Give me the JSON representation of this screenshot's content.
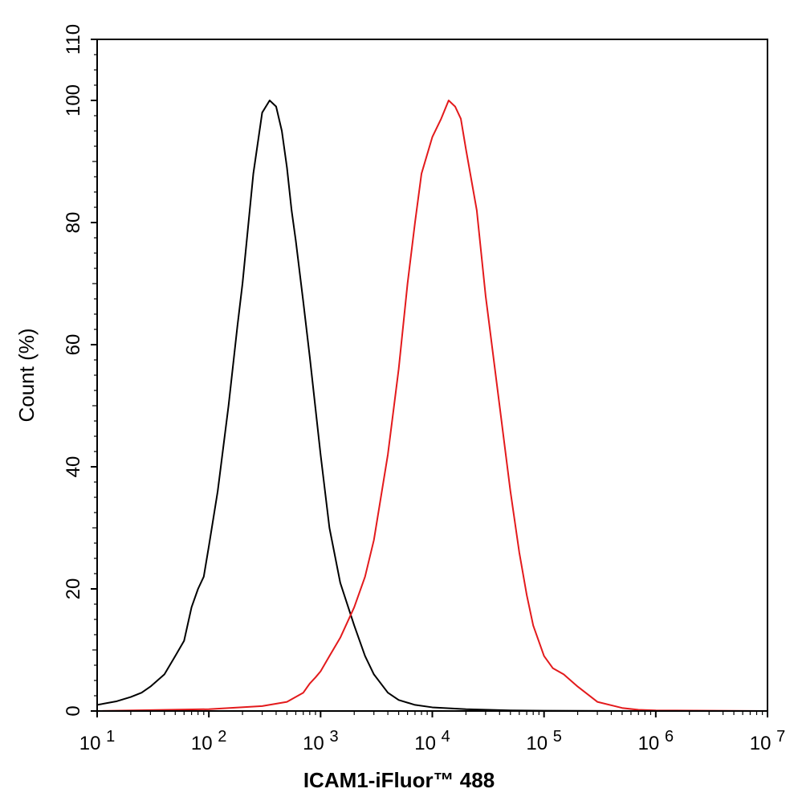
{
  "chart_data": {
    "type": "line",
    "title": "",
    "xlabel": "ICAM1-iFluor™ 488",
    "ylabel": "Count  (%)",
    "x_scale": "log",
    "xlim": [
      10,
      10000000
    ],
    "ylim": [
      0,
      110
    ],
    "x_ticks": [
      {
        "value": 10,
        "base": "10",
        "exp": "1"
      },
      {
        "value": 100,
        "base": "10",
        "exp": "2"
      },
      {
        "value": 1000,
        "base": "10",
        "exp": "3"
      },
      {
        "value": 10000,
        "base": "10",
        "exp": "4"
      },
      {
        "value": 100000,
        "base": "10",
        "exp": "5"
      },
      {
        "value": 1000000,
        "base": "10",
        "exp": "6"
      },
      {
        "value": 10000000,
        "base": "10",
        "exp": "7"
      }
    ],
    "y_ticks": [
      {
        "value": 0,
        "label": "0"
      },
      {
        "value": 20,
        "label": "20"
      },
      {
        "value": 40,
        "label": "40"
      },
      {
        "value": 60,
        "label": "60"
      },
      {
        "value": 80,
        "label": "80"
      },
      {
        "value": 100,
        "label": "100"
      },
      {
        "value": 110,
        "label": "110"
      }
    ],
    "grid": false,
    "legend": "none",
    "series": [
      {
        "color": "#000000",
        "x": [
          10,
          15,
          20,
          25,
          30,
          40,
          50,
          60,
          70,
          80,
          90,
          100,
          120,
          150,
          180,
          200,
          250,
          300,
          350,
          400,
          450,
          500,
          550,
          600,
          700,
          800,
          1000,
          1200,
          1500,
          2000,
          2500,
          3000,
          4000,
          5000,
          7000,
          10000,
          20000,
          50000,
          100000,
          1000000,
          10000000
        ],
        "y": [
          1,
          1.6,
          2.3,
          3,
          4,
          6,
          9,
          11.5,
          17,
          20,
          22,
          27,
          36,
          50,
          63,
          70,
          88,
          98,
          100,
          99,
          95,
          89,
          82,
          77,
          67,
          58,
          42,
          30,
          21,
          14,
          9,
          6,
          3,
          1.8,
          1,
          0.6,
          0.3,
          0.1,
          0.05,
          0,
          0
        ]
      },
      {
        "color": "#e31a1c",
        "x": [
          10,
          100,
          300,
          500,
          700,
          800,
          900,
          1000,
          1200,
          1500,
          2000,
          2500,
          3000,
          4000,
          5000,
          6000,
          7000,
          8000,
          10000,
          12000,
          14000,
          16000,
          18000,
          20000,
          25000,
          30000,
          40000,
          50000,
          60000,
          70000,
          80000,
          100000,
          120000,
          150000,
          200000,
          300000,
          500000,
          700000,
          1000000,
          10000000
        ],
        "y": [
          0,
          0.3,
          0.8,
          1.5,
          3,
          4.5,
          5.5,
          6.5,
          9,
          12,
          17,
          22,
          28,
          42,
          56,
          70,
          80,
          88,
          94,
          97,
          100,
          99,
          97,
          92,
          82,
          68,
          50,
          36,
          26,
          19,
          14,
          9,
          7,
          6,
          4,
          1.5,
          0.5,
          0.2,
          0.1,
          0
        ]
      }
    ]
  }
}
